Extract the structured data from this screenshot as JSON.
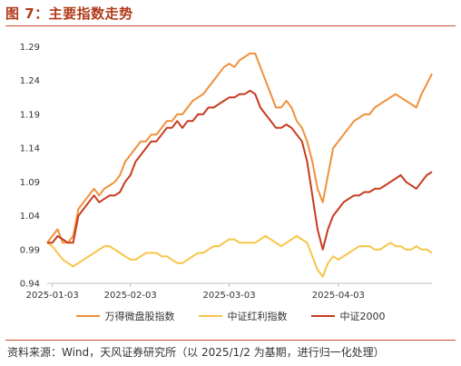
{
  "figure": {
    "title": "图 7：主要指数走势",
    "footnote": "资料来源：Wind，天风证券研究所（以 2025/1/2 为基期，进行归一化处理）"
  },
  "colors": {
    "title": "#b23a1b",
    "series_wanddesign": "#f0903a",
    "series_hongli": "#f7c548",
    "series_2000": "#c83a1e",
    "axis": "#bfbfbf"
  },
  "chart_data": {
    "type": "line",
    "xlabel": "",
    "ylabel": "",
    "x_ticks": [
      "2025-01-03",
      "2025-02-03",
      "2025-03-03",
      "2025-04-03"
    ],
    "x_tick_index": [
      1,
      16,
      35,
      56
    ],
    "x_count": 75,
    "y_ticks": [
      0.94,
      0.99,
      1.04,
      1.09,
      1.14,
      1.19,
      1.24,
      1.29
    ],
    "ylim": [
      0.94,
      1.3
    ],
    "grid": false,
    "legend": "bottom-center",
    "series": [
      {
        "name": "万得微盘股指数",
        "color": "#f0903a",
        "values": [
          1.0,
          1.01,
          1.02,
          1.0,
          1.0,
          1.01,
          1.05,
          1.06,
          1.07,
          1.08,
          1.07,
          1.08,
          1.085,
          1.09,
          1.1,
          1.12,
          1.13,
          1.14,
          1.15,
          1.15,
          1.16,
          1.16,
          1.17,
          1.18,
          1.18,
          1.19,
          1.19,
          1.2,
          1.21,
          1.215,
          1.22,
          1.23,
          1.24,
          1.25,
          1.26,
          1.265,
          1.26,
          1.27,
          1.275,
          1.28,
          1.28,
          1.26,
          1.24,
          1.22,
          1.2,
          1.2,
          1.21,
          1.2,
          1.18,
          1.17,
          1.15,
          1.12,
          1.08,
          1.06,
          1.1,
          1.14,
          1.15,
          1.16,
          1.17,
          1.18,
          1.185,
          1.19,
          1.19,
          1.2,
          1.205,
          1.21,
          1.215,
          1.22,
          1.215,
          1.21,
          1.205,
          1.2,
          1.22,
          1.235,
          1.25
        ]
      },
      {
        "name": "中证红利指数",
        "color": "#f7c548",
        "values": [
          1.0,
          0.995,
          0.985,
          0.975,
          0.97,
          0.965,
          0.97,
          0.975,
          0.98,
          0.985,
          0.99,
          0.995,
          0.995,
          0.99,
          0.985,
          0.98,
          0.975,
          0.975,
          0.98,
          0.985,
          0.985,
          0.985,
          0.98,
          0.98,
          0.975,
          0.97,
          0.97,
          0.975,
          0.98,
          0.985,
          0.985,
          0.99,
          0.995,
          0.995,
          1.0,
          1.005,
          1.005,
          1.0,
          1.0,
          1.0,
          1.0,
          1.005,
          1.01,
          1.005,
          1.0,
          0.995,
          1.0,
          1.005,
          1.01,
          1.005,
          1.0,
          0.98,
          0.96,
          0.95,
          0.97,
          0.98,
          0.975,
          0.98,
          0.985,
          0.99,
          0.995,
          0.995,
          0.995,
          0.99,
          0.99,
          0.995,
          1.0,
          0.995,
          0.995,
          0.99,
          0.99,
          0.995,
          0.99,
          0.99,
          0.985
        ]
      },
      {
        "name": "中证2000",
        "color": "#c83a1e",
        "values": [
          1.0,
          1.0,
          1.01,
          1.005,
          1.0,
          1.0,
          1.04,
          1.05,
          1.06,
          1.07,
          1.06,
          1.065,
          1.07,
          1.07,
          1.075,
          1.09,
          1.1,
          1.12,
          1.13,
          1.14,
          1.15,
          1.15,
          1.16,
          1.17,
          1.17,
          1.18,
          1.17,
          1.18,
          1.18,
          1.19,
          1.19,
          1.2,
          1.2,
          1.205,
          1.21,
          1.215,
          1.215,
          1.22,
          1.22,
          1.225,
          1.22,
          1.2,
          1.19,
          1.18,
          1.17,
          1.17,
          1.175,
          1.17,
          1.16,
          1.15,
          1.12,
          1.07,
          1.02,
          0.99,
          1.02,
          1.04,
          1.05,
          1.06,
          1.065,
          1.07,
          1.07,
          1.075,
          1.075,
          1.08,
          1.08,
          1.085,
          1.09,
          1.095,
          1.1,
          1.09,
          1.085,
          1.08,
          1.09,
          1.1,
          1.105
        ]
      }
    ]
  }
}
